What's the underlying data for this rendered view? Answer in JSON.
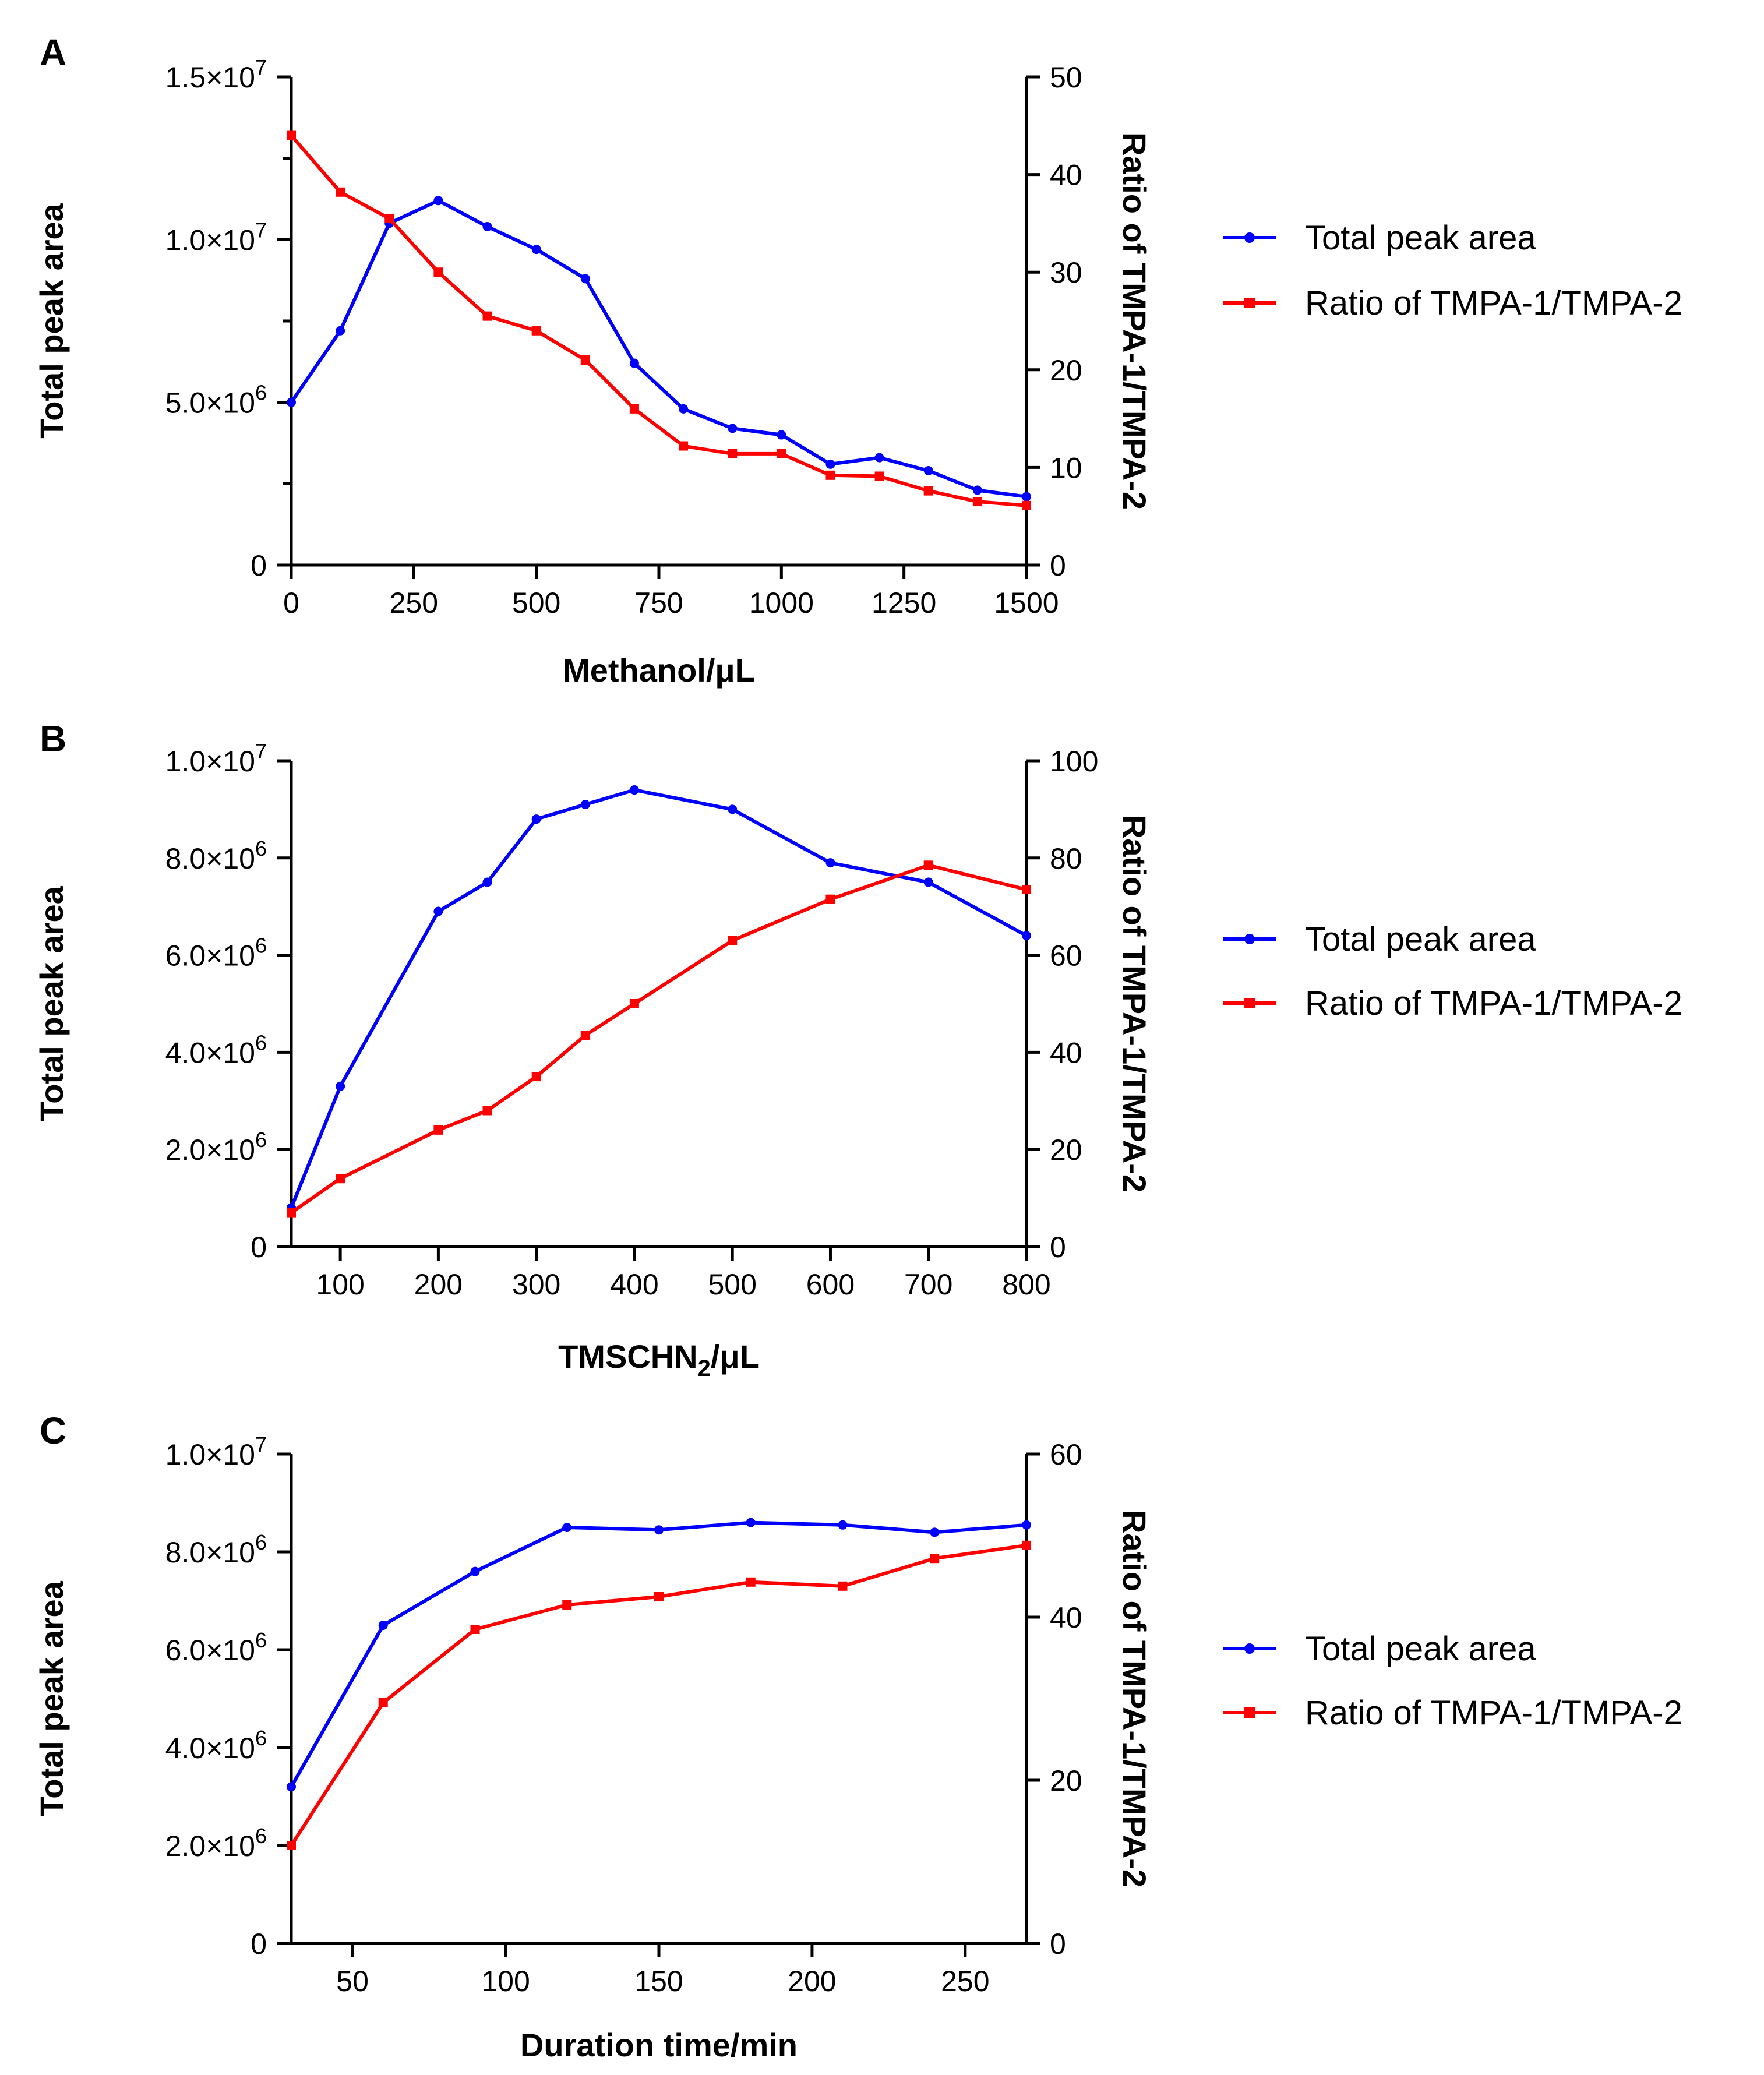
{
  "chart_data": [
    {
      "type": "line",
      "panel": "A",
      "xlabel": "Methanol/μL",
      "ylabel_left": "Total peak area",
      "ylabel_right": "Ratio of TMPA-1/TMPA-2",
      "xlim": [
        0,
        1500
      ],
      "ylim_left": [
        0,
        15000000
      ],
      "ylim_right": [
        0,
        50
      ],
      "x_ticks": [
        0,
        250,
        500,
        750,
        1000,
        1250,
        1500
      ],
      "x_tick_labels": [
        "0",
        "250",
        "500",
        "750",
        "1000",
        "1250",
        "1500"
      ],
      "y_left_ticks": [
        0,
        5000000,
        10000000,
        15000000
      ],
      "y_left_minor_ticks": [
        2500000,
        7500000,
        12500000
      ],
      "y_left_tick_labels": [
        {
          "base": "0",
          "exp": ""
        },
        {
          "base": "5.0×10",
          "exp": "6"
        },
        {
          "base": "1.0×10",
          "exp": "7"
        },
        {
          "base": "1.5×10",
          "exp": "7"
        }
      ],
      "y_right_ticks": [
        0,
        10,
        20,
        30,
        40,
        50
      ],
      "y_right_tick_labels": [
        "0",
        "10",
        "20",
        "30",
        "40",
        "50"
      ],
      "x": [
        0,
        100,
        200,
        300,
        400,
        500,
        600,
        700,
        800,
        900,
        1000,
        1100,
        1200,
        1300,
        1400,
        1500
      ],
      "series": [
        {
          "name": "Total peak area",
          "axis": "left",
          "color": "#0000FF",
          "marker": "circle",
          "values": [
            5000000,
            7200000,
            10500000,
            11200000,
            10400000,
            9700000,
            8800000,
            6200000,
            4800000,
            4200000,
            4000000,
            3100000,
            3300000,
            2900000,
            2300000,
            2100000
          ]
        },
        {
          "name": "Ratio of TMPA-1/TMPA-2",
          "axis": "right",
          "color": "#FF0000",
          "marker": "square",
          "values": [
            44,
            38.2,
            35.5,
            30,
            25.5,
            24,
            21,
            16,
            12.2,
            11.4,
            11.4,
            9.2,
            9.1,
            7.6,
            6.5,
            6.1
          ]
        }
      ]
    },
    {
      "type": "line",
      "panel": "B",
      "xlabel_main": "TMSCHN",
      "xlabel_sub": "2",
      "xlabel_tail": "/μL",
      "ylabel_left": "Total peak area",
      "ylabel_right": "Ratio of TMPA-1/TMPA-2",
      "xlim": [
        50,
        800
      ],
      "ylim_left": [
        0,
        10000000
      ],
      "ylim_right": [
        0,
        100
      ],
      "x_ticks": [
        100,
        200,
        300,
        400,
        500,
        600,
        700,
        800
      ],
      "x_tick_labels": [
        "100",
        "200",
        "300",
        "400",
        "500",
        "600",
        "700",
        "800"
      ],
      "y_left_ticks": [
        0,
        2000000,
        4000000,
        6000000,
        8000000,
        10000000
      ],
      "y_left_minor_ticks": [],
      "y_left_tick_labels": [
        {
          "base": "0",
          "exp": ""
        },
        {
          "base": "2.0×10",
          "exp": "6"
        },
        {
          "base": "4.0×10",
          "exp": "6"
        },
        {
          "base": "6.0×10",
          "exp": "6"
        },
        {
          "base": "8.0×10",
          "exp": "6"
        },
        {
          "base": "1.0×10",
          "exp": "7"
        }
      ],
      "y_right_ticks": [
        0,
        20,
        40,
        60,
        80,
        100
      ],
      "y_right_tick_labels": [
        "0",
        "20",
        "40",
        "60",
        "80",
        "100"
      ],
      "x": [
        50,
        100,
        200,
        250,
        300,
        350,
        400,
        500,
        600,
        700,
        800
      ],
      "series": [
        {
          "name": "Total peak area",
          "axis": "left",
          "color": "#0000FF",
          "marker": "circle",
          "values": [
            800000,
            3300000,
            6900000,
            7500000,
            8800000,
            9100000,
            9400000,
            9000000,
            7900000,
            7500000,
            6400000
          ]
        },
        {
          "name": "Ratio of TMPA-1/TMPA-2",
          "axis": "right",
          "color": "#FF0000",
          "marker": "square",
          "values": [
            7,
            14,
            24,
            28,
            35,
            43.5,
            50,
            63,
            71.5,
            78.5,
            73.5
          ]
        }
      ]
    },
    {
      "type": "line",
      "panel": "C",
      "xlabel": "Duration time/min",
      "ylabel_left": "Total peak area",
      "ylabel_right": "Ratio of TMPA-1/TMPA-2",
      "xlim": [
        30,
        270
      ],
      "ylim_left": [
        0,
        10000000
      ],
      "ylim_right": [
        0,
        60
      ],
      "x_ticks": [
        50,
        100,
        150,
        200,
        250
      ],
      "x_tick_labels": [
        "50",
        "100",
        "150",
        "200",
        "250"
      ],
      "y_left_ticks": [
        0,
        2000000,
        4000000,
        6000000,
        8000000,
        10000000
      ],
      "y_left_minor_ticks": [],
      "y_left_tick_labels": [
        {
          "base": "0",
          "exp": ""
        },
        {
          "base": "2.0×10",
          "exp": "6"
        },
        {
          "base": "4.0×10",
          "exp": "6"
        },
        {
          "base": "6.0×10",
          "exp": "6"
        },
        {
          "base": "8.0×10",
          "exp": "6"
        },
        {
          "base": "1.0×10",
          "exp": "7"
        }
      ],
      "y_right_ticks": [
        0,
        20,
        40,
        60
      ],
      "y_right_tick_labels": [
        "0",
        "20",
        "40",
        "60"
      ],
      "x": [
        30,
        60,
        90,
        120,
        150,
        180,
        210,
        240,
        270
      ],
      "series": [
        {
          "name": "Total peak area",
          "axis": "left",
          "color": "#0000FF",
          "marker": "circle",
          "values": [
            3200000,
            6500000,
            7600000,
            8500000,
            8450000,
            8600000,
            8550000,
            8400000,
            8550000
          ]
        },
        {
          "name": "Ratio of TMPA-1/TMPA-2",
          "axis": "right",
          "color": "#FF0000",
          "marker": "square",
          "values": [
            12,
            29.5,
            38.5,
            41.5,
            42.5,
            44.3,
            43.8,
            47.2,
            48.8
          ]
        }
      ]
    }
  ]
}
